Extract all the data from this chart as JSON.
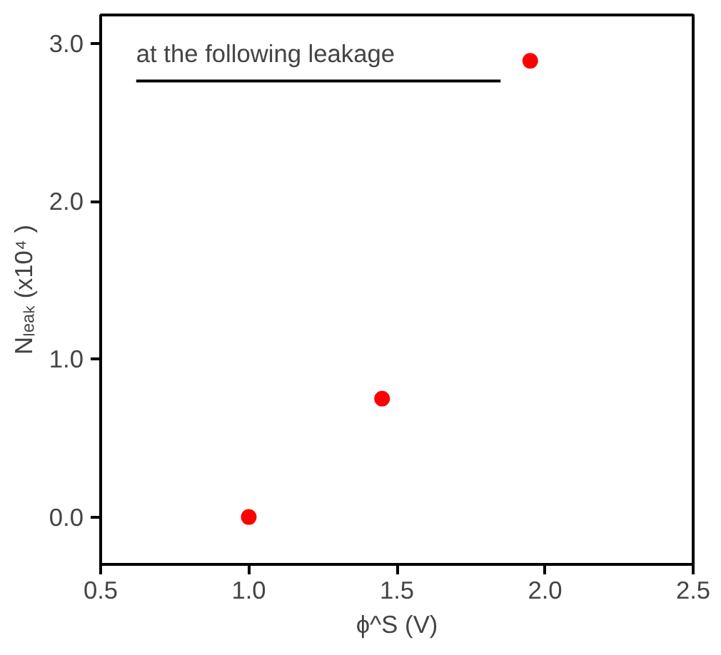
{
  "chart_data": {
    "type": "scatter",
    "x": [
      1.0,
      1.45,
      1.95
    ],
    "values": [
      0.0,
      0.75,
      2.89
    ],
    "color": "#ff0000",
    "marker": "circle",
    "xlim": [
      0.5,
      2.5
    ],
    "ylim": [
      -0.3,
      3.18
    ],
    "xticks": [
      {
        "value": 0.5,
        "label": "0.5"
      },
      {
        "value": 1.0,
        "label": "1.0"
      },
      {
        "value": 1.5,
        "label": "1.5"
      },
      {
        "value": 2.0,
        "label": "2.0"
      },
      {
        "value": 2.5,
        "label": "2.5"
      }
    ],
    "yticks": [
      {
        "value": 0,
        "label": "0.0"
      },
      {
        "value": 1,
        "label": "1.0"
      },
      {
        "value": 2,
        "label": "2.0"
      },
      {
        "value": 3,
        "label": "3.0"
      }
    ],
    "xlabel": "ϕ^S (V)",
    "ylabel": "Nₗₑₐₖ (x10⁴ )",
    "annotations": [
      "at the following leakage"
    ],
    "grid": false
  }
}
